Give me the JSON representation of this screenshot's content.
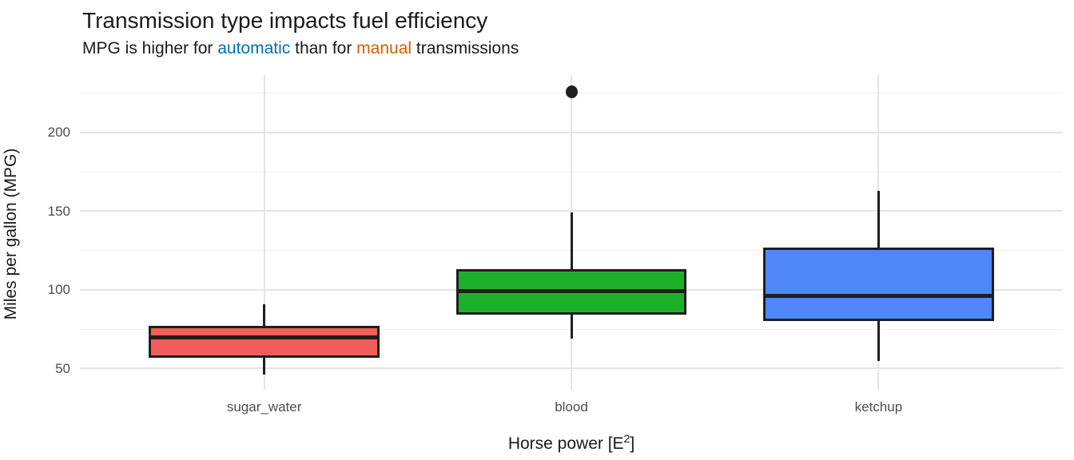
{
  "header": {
    "title": "Transmission type impacts fuel efficiency",
    "subtitle_parts": [
      {
        "text": "MPG is higher for ",
        "role": "plain"
      },
      {
        "text": "automatic",
        "role": "automatic"
      },
      {
        "text": " than for ",
        "role": "plain"
      },
      {
        "text": "manual",
        "role": "manual"
      },
      {
        "text": " transmissions",
        "role": "plain"
      }
    ]
  },
  "colors": {
    "automatic_accent": "#0072B2",
    "manual_accent": "#D55E00",
    "box_sugar_water": "#F15E59",
    "box_blood": "#1DB12B",
    "box_ketchup": "#4D87F8",
    "box_outline": "#1f1f1f",
    "gridline_major": "#e4e4e4",
    "gridline_minor": "#f1f1f1",
    "tick_label": "#4d4d4d"
  },
  "chart_data": {
    "type": "boxplot",
    "title": "Transmission type impacts fuel efficiency",
    "subtitle": "MPG is higher for automatic than for manual transmissions",
    "xlabel": "Horse power [E2]",
    "xlabel_parts": {
      "pre": "Horse power [E",
      "sup": "2",
      "post": "]"
    },
    "ylabel": "Miles per gallon (MPG)",
    "categories": [
      "sugar_water",
      "blood",
      "ketchup"
    ],
    "y_ticks": [
      50,
      100,
      150,
      200
    ],
    "y_minor_ticks": [
      75,
      125,
      175,
      225
    ],
    "ylim": [
      36.5,
      236.5
    ],
    "grid": true,
    "legend": "none",
    "series": [
      {
        "category": "sugar_water",
        "color": "#F15E59",
        "whisker_low": 46,
        "q1": 57,
        "median": 70,
        "q3": 77,
        "whisker_high": 91,
        "outliers": []
      },
      {
        "category": "blood",
        "color": "#1DB12B",
        "whisker_low": 69,
        "q1": 84,
        "median": 99,
        "q3": 113,
        "whisker_high": 149,
        "outliers": [
          226
        ]
      },
      {
        "category": "ketchup",
        "color": "#4D87F8",
        "whisker_low": 55,
        "q1": 80,
        "median": 96,
        "q3": 127,
        "whisker_high": 163,
        "outliers": []
      }
    ]
  }
}
